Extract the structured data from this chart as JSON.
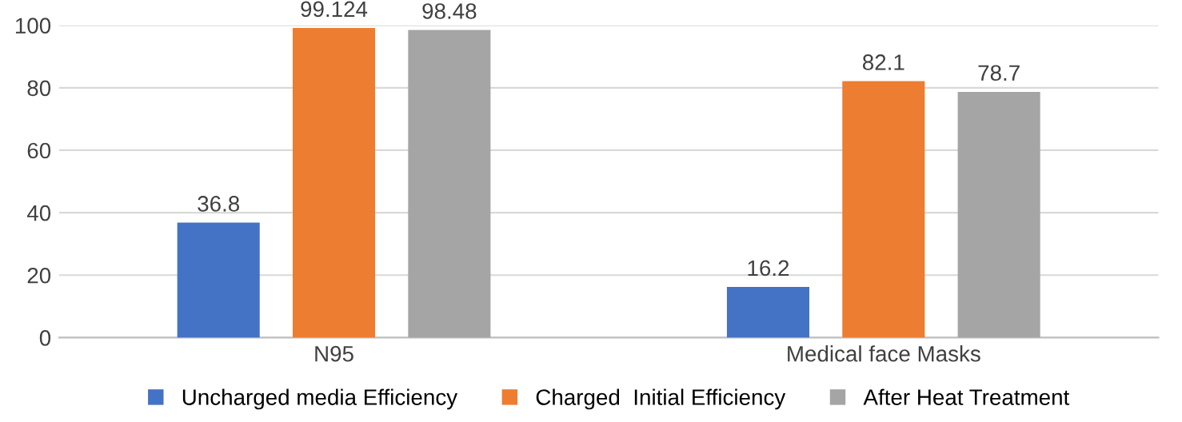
{
  "chart_data": {
    "type": "bar",
    "categories": [
      "N95",
      "Medical face Masks"
    ],
    "series": [
      {
        "name": "Uncharged media Efficiency",
        "color": "#4472c4",
        "values": [
          36.8,
          16.2
        ]
      },
      {
        "name": "Charged  Initial Efficiency",
        "color": "#ed7d31",
        "values": [
          99.124,
          82.1
        ]
      },
      {
        "name": "After Heat Treatment",
        "color": "#a5a5a5",
        "values": [
          98.48,
          78.7
        ]
      }
    ],
    "ylim": [
      0,
      100
    ],
    "yticks": [
      0,
      20,
      40,
      60,
      80,
      100
    ],
    "grid": "y",
    "legend": "bottom",
    "data_labels": true
  }
}
